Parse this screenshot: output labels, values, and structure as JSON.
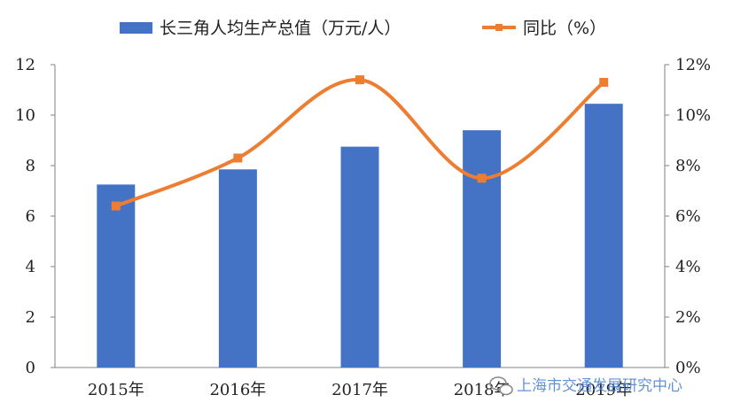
{
  "chart_data": {
    "type": "bar",
    "categories": [
      "2015年",
      "2016年",
      "2017年",
      "2018年",
      "2019年"
    ],
    "series": [
      {
        "name": "长三角人均生产总值（万元/人）",
        "type": "bar",
        "axis": "left",
        "color": "#4472C4",
        "values": [
          7.25,
          7.85,
          8.75,
          9.4,
          10.45
        ]
      },
      {
        "name": "同比（%）",
        "type": "line",
        "axis": "right",
        "color": "#ED7D31",
        "values": [
          6.4,
          8.3,
          11.4,
          7.5,
          11.3
        ]
      }
    ],
    "left_axis": {
      "ylim": [
        0,
        12
      ],
      "ticks": [
        "0",
        "2",
        "4",
        "6",
        "8",
        "10",
        "12"
      ]
    },
    "right_axis": {
      "ylim": [
        0,
        12
      ],
      "ticks": [
        "0%",
        "2%",
        "4%",
        "6%",
        "8%",
        "10%",
        "12%"
      ]
    },
    "legend_position": "top",
    "grid": false
  },
  "watermark": {
    "text": "上海市交通发展研究中心",
    "icon": "wechat-icon"
  }
}
